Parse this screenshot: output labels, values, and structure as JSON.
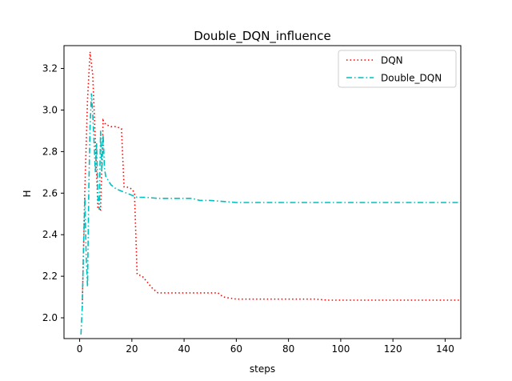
{
  "chart_data": {
    "type": "line",
    "title": "Double_DQN_influence",
    "xlabel": "steps",
    "ylabel": "H",
    "xlim": [
      -6,
      146
    ],
    "ylim": [
      1.9,
      3.31
    ],
    "xticks": [
      0,
      20,
      40,
      60,
      80,
      100,
      120,
      140
    ],
    "yticks": [
      2.0,
      2.2,
      2.4,
      2.6,
      2.8,
      3.0,
      3.2
    ],
    "xtick_labels": [
      "0",
      "20",
      "40",
      "60",
      "80",
      "100",
      "120",
      "140"
    ],
    "ytick_labels": [
      "2.0",
      "2.2",
      "2.4",
      "2.6",
      "2.8",
      "3.0",
      "3.2"
    ],
    "grid": false,
    "legend_position": "upper right",
    "series": [
      {
        "name": "DQN",
        "color": "#ff0000",
        "style": "dotted",
        "x": [
          1,
          2,
          3,
          4,
          5,
          6,
          7,
          8,
          9,
          10,
          12,
          14,
          16,
          17,
          18,
          20,
          21,
          22,
          24,
          26,
          28,
          30,
          35,
          40,
          45,
          50,
          53,
          55,
          60,
          70,
          80,
          90,
          95,
          100,
          110,
          120,
          130,
          140,
          146
        ],
        "y": [
          2.05,
          2.62,
          3.05,
          3.28,
          3.17,
          2.85,
          2.53,
          2.52,
          2.95,
          2.93,
          2.92,
          2.92,
          2.91,
          2.63,
          2.63,
          2.62,
          2.6,
          2.21,
          2.2,
          2.17,
          2.14,
          2.12,
          2.12,
          2.12,
          2.12,
          2.12,
          2.12,
          2.1,
          2.09,
          2.09,
          2.09,
          2.09,
          2.085,
          2.085,
          2.085,
          2.085,
          2.085,
          2.085,
          2.085
        ]
      },
      {
        "name": "Double_DQN",
        "color": "#00bfbf",
        "style": "dashdot",
        "x": [
          0.5,
          1,
          1.5,
          2,
          2.5,
          3,
          3.5,
          4,
          4.5,
          5,
          5.5,
          6,
          6.5,
          7,
          7.5,
          8,
          8.5,
          9,
          9.5,
          10,
          11,
          12,
          13,
          14,
          16,
          18,
          20,
          22,
          25,
          30,
          35,
          40,
          43,
          46,
          50,
          55,
          60,
          70,
          80,
          90,
          100,
          110,
          120,
          130,
          140,
          146
        ],
        "y": [
          1.92,
          2.05,
          2.35,
          2.58,
          2.3,
          2.15,
          2.62,
          2.92,
          3.08,
          2.98,
          2.85,
          2.7,
          2.84,
          2.58,
          2.52,
          2.9,
          2.7,
          2.88,
          2.72,
          2.68,
          2.66,
          2.64,
          2.63,
          2.62,
          2.61,
          2.6,
          2.59,
          2.58,
          2.58,
          2.575,
          2.575,
          2.575,
          2.575,
          2.565,
          2.565,
          2.56,
          2.555,
          2.555,
          2.555,
          2.555,
          2.555,
          2.555,
          2.555,
          2.555,
          2.555,
          2.555
        ]
      }
    ]
  }
}
